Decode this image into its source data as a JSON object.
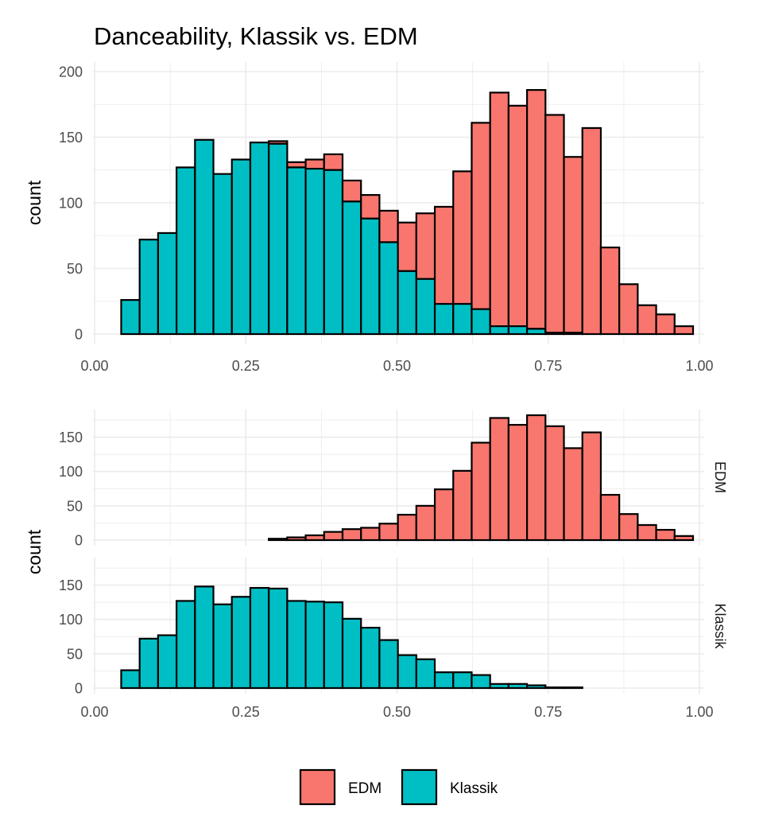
{
  "chart_data": {
    "type": "bar",
    "title": "Danceability, Klassik vs. EDM",
    "x_range": [
      0,
      1
    ],
    "x_ticks": [
      "0.00",
      "0.25",
      "0.50",
      "0.75",
      "1.00"
    ],
    "bin_start": 0.044,
    "bin_width": 0.0305,
    "grid": true,
    "legend_position": "bottom",
    "series": [
      {
        "name": "EDM",
        "color": "#F8766D",
        "values": [
          0,
          0,
          0,
          0,
          0,
          0,
          0,
          0,
          2,
          4,
          7,
          12,
          16,
          18,
          24,
          37,
          50,
          74,
          101,
          142,
          178,
          168,
          182,
          166,
          134,
          157,
          66,
          38,
          22,
          15,
          6
        ]
      },
      {
        "name": "Klassik",
        "color": "#00BFC4",
        "values": [
          26,
          72,
          77,
          127,
          148,
          122,
          133,
          146,
          145,
          127,
          126,
          125,
          101,
          88,
          70,
          48,
          42,
          23,
          23,
          19,
          6,
          6,
          4,
          1,
          1,
          0,
          0,
          0,
          0,
          0,
          0
        ]
      }
    ],
    "panels": [
      {
        "id": "stacked",
        "ylabel": "count",
        "ylim": [
          0,
          200
        ],
        "y_ticks": [
          "0",
          "50",
          "100",
          "150",
          "200"
        ],
        "stacking": "stacked"
      },
      {
        "id": "facets",
        "ylabel": "count",
        "ylim": [
          0,
          182
        ],
        "y_ticks": [
          "0",
          "50",
          "100",
          "150"
        ],
        "facets": [
          {
            "strip": "EDM",
            "series": "EDM"
          },
          {
            "strip": "Klassik",
            "series": "Klassik"
          }
        ]
      }
    ],
    "legend": [
      {
        "label": "EDM",
        "color": "#F8766D"
      },
      {
        "label": "Klassik",
        "color": "#00BFC4"
      }
    ]
  }
}
